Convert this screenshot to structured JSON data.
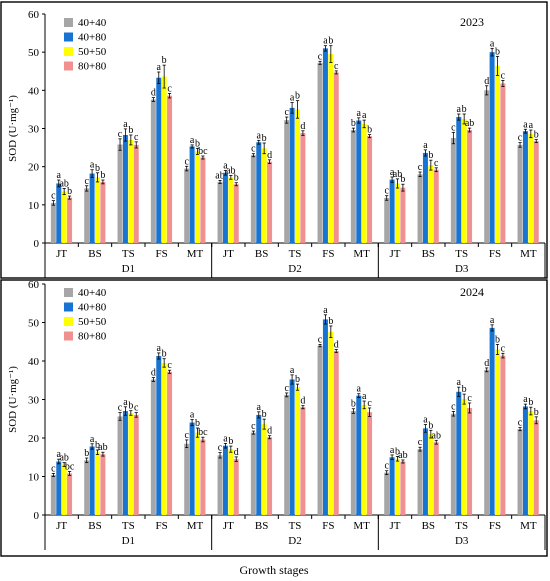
{
  "xlabel": "Growth stages",
  "chart_data": [
    {
      "type": "bar",
      "year": "2023",
      "ylabel": "SOD (U·mg⁻¹)",
      "ylim": [
        0,
        60
      ],
      "yticks": [
        0,
        10,
        20,
        30,
        40,
        50,
        60
      ],
      "grid": false,
      "legend": "top-left",
      "groups": [
        "D1",
        "D2",
        "D3"
      ],
      "categories": [
        "JT",
        "BS",
        "TS",
        "FS",
        "MT"
      ],
      "series": [
        {
          "name": "40+40",
          "color": "#a6a6a6",
          "values": [
            [
              10.5,
              14.3,
              25.8,
              37.6,
              19.5
            ],
            [
              16.0,
              23.0,
              32.2,
              47.2,
              29.6
            ],
            [
              11.8,
              18.0,
              27.5,
              40.0,
              25.7
            ]
          ],
          "errors": [
            [
              0.6,
              0.7,
              1.5,
              0.5,
              0.6
            ],
            [
              0.4,
              0.4,
              0.8,
              0.4,
              0.5
            ],
            [
              0.6,
              0.6,
              1.5,
              1.2,
              0.6
            ]
          ],
          "letters": [
            [
              "c",
              "c",
              "c",
              "d",
              "c"
            ],
            [
              "ab",
              "c",
              "c",
              "c",
              "b"
            ],
            [
              "c",
              "c",
              "c",
              "d",
              "c"
            ]
          ]
        },
        {
          "name": "40+80",
          "color": "#1874d2",
          "values": [
            [
              15.6,
              18.2,
              28.3,
              43.3,
              25.3
            ],
            [
              18.4,
              26.4,
              35.4,
              51.0,
              32.1
            ],
            [
              16.6,
              23.6,
              33.0,
              50.0,
              29.3
            ]
          ],
          "errors": [
            [
              0.9,
              1.0,
              1.6,
              1.5,
              0.4
            ],
            [
              0.6,
              0.5,
              1.4,
              0.7,
              0.7
            ],
            [
              0.7,
              0.8,
              0.8,
              1.0,
              0.5
            ]
          ],
          "letters": [
            [
              "a",
              "a",
              "a",
              "a",
              "a"
            ],
            [
              "a",
              "a",
              "a",
              "a",
              "a"
            ],
            [
              "a",
              "a",
              "a",
              "a",
              "a"
            ]
          ]
        },
        {
          "name": "50+50",
          "color": "#ffff00",
          "values": [
            [
              13.5,
              17.2,
              27.0,
              43.6,
              24.0
            ],
            [
              17.2,
              24.8,
              35.0,
              49.5,
              31.2
            ],
            [
              15.6,
              20.4,
              32.5,
              46.4,
              28.6
            ]
          ],
          "errors": [
            [
              0.8,
              1.2,
              1.3,
              3.0,
              0.8
            ],
            [
              0.5,
              1.4,
              2.3,
              2.2,
              1.0
            ],
            [
              1.2,
              1.3,
              1.3,
              2.5,
              1.0
            ]
          ],
          "letters": [
            [
              "ab",
              "b",
              "b",
              "b",
              "b"
            ],
            [
              "ab",
              "b",
              "b",
              "b",
              "a"
            ],
            [
              "ab",
              "b",
              "b",
              "b",
              "a"
            ]
          ]
        },
        {
          "name": "80+80",
          "color": "#f0908f",
          "values": [
            [
              11.9,
              16.0,
              25.7,
              38.6,
              22.4
            ],
            [
              15.4,
              21.3,
              28.8,
              44.7,
              28.0
            ],
            [
              14.5,
              19.2,
              29.6,
              41.8,
              26.7
            ]
          ],
          "errors": [
            [
              0.4,
              0.5,
              0.8,
              0.6,
              0.4
            ],
            [
              0.4,
              0.5,
              0.6,
              0.4,
              0.4
            ],
            [
              0.9,
              0.5,
              0.5,
              0.8,
              0.4
            ]
          ],
          "letters": [
            [
              "b",
              "b",
              "c",
              "c",
              "bc"
            ],
            [
              "b",
              "d",
              "d",
              "c",
              "b"
            ],
            [
              "b",
              "c",
              "ab",
              "c",
              "b"
            ]
          ]
        }
      ]
    },
    {
      "type": "bar",
      "year": "2024",
      "ylabel": "SOD (U·mg⁻¹)",
      "ylim": [
        0,
        60
      ],
      "yticks": [
        0,
        10,
        20,
        30,
        40,
        50,
        60
      ],
      "grid": false,
      "legend": "top-left",
      "groups": [
        "D1",
        "D2",
        "D3"
      ],
      "categories": [
        "JT",
        "BS",
        "TS",
        "FS",
        "MT"
      ],
      "series": [
        {
          "name": "40+40",
          "color": "#a6a6a6",
          "values": [
            [
              10.4,
              14.2,
              25.6,
              35.2,
              18.5
            ],
            [
              15.5,
              21.4,
              31.2,
              44.0,
              27.0
            ],
            [
              11.0,
              17.1,
              26.3,
              37.7,
              22.3
            ]
          ],
          "errors": [
            [
              0.4,
              0.6,
              1.0,
              0.5,
              1.0
            ],
            [
              0.7,
              0.4,
              0.5,
              0.3,
              0.6
            ],
            [
              0.5,
              0.5,
              0.6,
              0.5,
              0.4
            ]
          ],
          "letters": [
            [
              "c",
              "b",
              "c",
              "d",
              "c"
            ],
            [
              "c",
              "c",
              "c",
              "c",
              "b"
            ],
            [
              "c",
              "c",
              "c",
              "d",
              "c"
            ]
          ]
        },
        {
          "name": "40+80",
          "color": "#1874d2",
          "values": [
            [
              13.9,
              17.8,
              27.0,
              41.3,
              24.0
            ],
            [
              18.0,
              26.0,
              35.2,
              50.8,
              31.0
            ],
            [
              15.0,
              22.5,
              32.0,
              48.6,
              28.2
            ]
          ],
          "errors": [
            [
              0.6,
              0.7,
              1.1,
              0.8,
              0.8
            ],
            [
              0.6,
              0.8,
              1.2,
              1.2,
              0.5
            ],
            [
              0.6,
              1.0,
              1.2,
              0.8,
              0.6
            ]
          ],
          "letters": [
            [
              "a",
              "a",
              "a",
              "a",
              "a"
            ],
            [
              "a",
              "a",
              "a",
              "a",
              "a"
            ],
            [
              "a",
              "a",
              "a",
              "a",
              "a"
            ]
          ]
        },
        {
          "name": "50+50",
          "color": "#ffff00",
          "values": [
            [
              13.1,
              16.3,
              26.5,
              39.5,
              21.4
            ],
            [
              17.1,
              23.6,
              33.2,
              47.6,
              28.6
            ],
            [
              14.6,
              21.0,
              30.1,
              43.0,
              27.0
            ]
          ],
          "errors": [
            [
              0.5,
              0.6,
              0.6,
              1.1,
              1.2
            ],
            [
              0.8,
              1.3,
              0.8,
              1.5,
              1.0
            ],
            [
              0.6,
              1.0,
              1.3,
              1.3,
              1.0
            ]
          ],
          "letters": [
            [
              "ab",
              "b",
              "b",
              "b",
              "b"
            ],
            [
              "b",
              "b",
              "b",
              "b",
              "a"
            ],
            [
              "b",
              "b",
              "b",
              "b",
              "b"
            ]
          ]
        },
        {
          "name": "80+80",
          "color": "#f0908f",
          "values": [
            [
              10.8,
              15.8,
              26.0,
              37.2,
              19.6
            ],
            [
              14.5,
              20.2,
              28.0,
              42.6,
              26.7
            ],
            [
              13.9,
              18.9,
              27.8,
              41.4,
              24.6
            ]
          ],
          "errors": [
            [
              0.5,
              0.5,
              0.6,
              0.4,
              0.6
            ],
            [
              0.6,
              0.4,
              0.4,
              0.4,
              1.1
            ],
            [
              0.4,
              0.5,
              1.3,
              0.6,
              0.9
            ]
          ],
          "letters": [
            [
              "bc",
              "ab",
              "c",
              "c",
              "bc"
            ],
            [
              "d",
              "d",
              "d",
              "d",
              "c"
            ],
            [
              "ab",
              "ab",
              "c",
              "c",
              "b"
            ]
          ]
        }
      ]
    }
  ]
}
